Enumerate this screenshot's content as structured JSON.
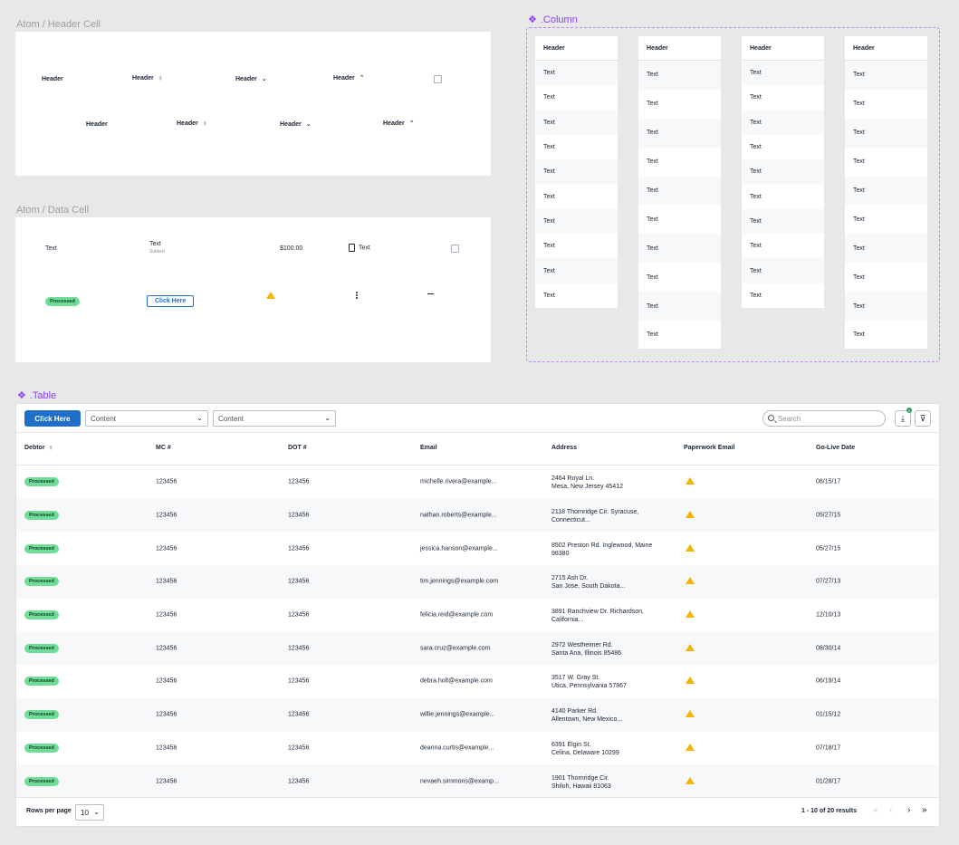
{
  "header_cell_section": {
    "title": "Atom / Header Cell",
    "header_label": "Header"
  },
  "data_cell_section": {
    "title": "Atom / Data Cell",
    "text": "Text",
    "subtext": "Subtext",
    "amount": "$100.00",
    "status": "Processed",
    "button_label": "Click Here"
  },
  "column_component": {
    "title": ".Column",
    "header_label": "Header",
    "cell_text": "Text"
  },
  "table_component": {
    "title": ".Table",
    "primary_button": "Click Here",
    "select_1": "Content",
    "select_2": "Content",
    "search_placeholder": "Search",
    "download_badge_count": "0",
    "columns": [
      "Debtor",
      "MC #",
      "DOT #",
      "Email",
      "Address",
      "Paperwork Email",
      "Go-Live Date"
    ],
    "rows": [
      {
        "status": "Processed",
        "mc": "123456",
        "dot": "123456",
        "email": "michelle.rivera@example...",
        "addr1": "2464 Royal Ln.",
        "addr2": "Mesa, New Jersey 45412",
        "date": "08/15/17"
      },
      {
        "status": "Processed",
        "mc": "123456",
        "dot": "123456",
        "email": "nathan.roberts@example...",
        "addr1": "2118 Thornridge Cir. Syracuse,",
        "addr2": "Connecticut...",
        "date": "05/27/15"
      },
      {
        "status": "Processed",
        "mc": "123456",
        "dot": "123456",
        "email": "jessica.hanson@example...",
        "addr1": "8502 Preston Rd. Inglewood, Maine",
        "addr2": "98380",
        "date": "05/27/15"
      },
      {
        "status": "Processed",
        "mc": "123456",
        "dot": "123456",
        "email": "tim.jennings@example.com",
        "addr1": "2715 Ash Dr.",
        "addr2": "San Jose, South Dakota...",
        "date": "07/27/13"
      },
      {
        "status": "Processed",
        "mc": "123456",
        "dot": "123456",
        "email": "felicia.reid@example.com",
        "addr1": "3891 Ranchview Dr. Richardson,",
        "addr2": "California...",
        "date": "12/10/13"
      },
      {
        "status": "Processed",
        "mc": "123456",
        "dot": "123456",
        "email": "sara.cruz@example.com",
        "addr1": "2972 Westheimer Rd.",
        "addr2": "Santa Ana, Illinois 85486",
        "date": "08/30/14"
      },
      {
        "status": "Processed",
        "mc": "123456",
        "dot": "123456",
        "email": "debra.holt@example.com",
        "addr1": "3517 W. Gray St.",
        "addr2": "Utica, Pennsylvania 57867",
        "date": "06/19/14"
      },
      {
        "status": "Processed",
        "mc": "123456",
        "dot": "123456",
        "email": "willie.jennings@example...",
        "addr1": "4140 Parker Rd.",
        "addr2": "Allentown, New Mexico...",
        "date": "01/15/12"
      },
      {
        "status": "Processed",
        "mc": "123456",
        "dot": "123456",
        "email": "deanna.curtis@example...",
        "addr1": "6391 Elgin St.",
        "addr2": "Celina, Delaware 10299",
        "date": "07/18/17"
      },
      {
        "status": "Processed",
        "mc": "123456",
        "dot": "123456",
        "email": "nevaeh.simmons@examp...",
        "addr1": "1901 Thornridge Cir.",
        "addr2": "Shiloh, Hawaii 81063",
        "date": "01/28/17"
      }
    ],
    "rows_per_page_label": "Rows per page",
    "rows_per_page_value": "10",
    "results_text": "1 - 10 of 20 results"
  },
  "colors": {
    "primary": "#1f6fc6",
    "badge_green": "#6fdc97",
    "warning": "#f4b400",
    "component_purple": "#8a3ffc"
  },
  "icons": [
    "sort-icon",
    "chevron-down-icon",
    "chevron-up-icon",
    "document-icon",
    "warning-icon",
    "kebab-icon",
    "search-icon",
    "download-icon",
    "filter-icon",
    "first-page-icon",
    "prev-page-icon",
    "next-page-icon",
    "last-page-icon"
  ]
}
